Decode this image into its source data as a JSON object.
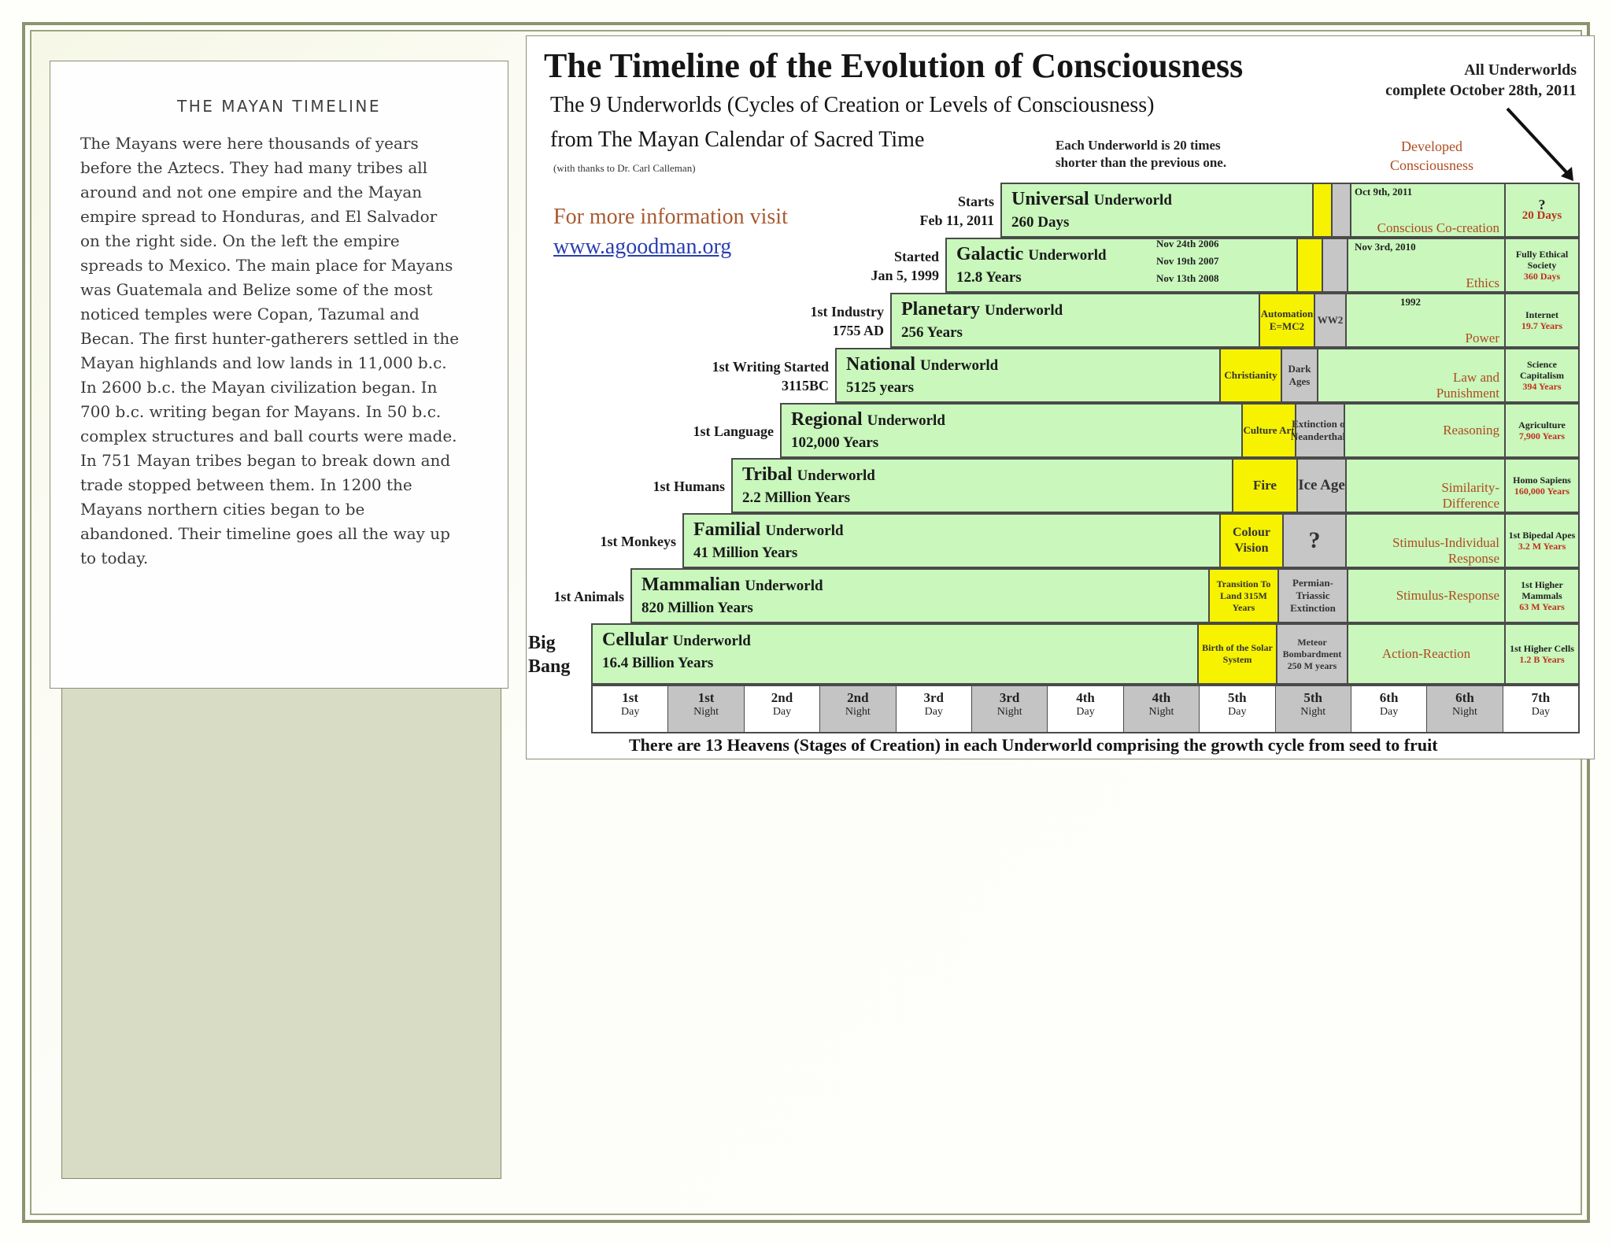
{
  "card": {
    "title": "THE MAYAN TIMELINE",
    "body": "The Mayans were here thousands of years\nbefore the Aztecs.  They had many tribes all\naround and not one empire and the Mayan\nempire spread to Honduras, and El Salvador\non the right side. On the left the empire\nspreads to Mexico. The main place for Mayans\nwas Guatemala and Belize some of the most\nnoticed temples were Copan, Tazumal and\nBecan. The first hunter-gatherers settled in the\nMayan highlands and low lands in 11,000 b.c.\nIn 2600 b.c. the Mayan civilization began. In\n700 b.c. writing began for Mayans. In 50 b.c.\ncomplex structures and ball courts were made.\nIn 751 Mayan tribes began to break down and\ntrade stopped between them. In 1200 the\nMayans northern cities began to be\nabandoned. Their timeline goes all the way up\nto today."
  },
  "poster": {
    "title": "The Timeline of the Evolution of Consciousness",
    "subtitle1": "The 9 Underworlds (Cycles of Creation or Levels of Consciousness)",
    "subtitle2": "from The Mayan Calendar of Sacred Time",
    "thanks": "(with thanks to Dr. Carl Calleman)",
    "note_line1": "Each Underworld is 20 times",
    "note_line2": "shorter than the previous one.",
    "all_underworlds_1": "All Underworlds",
    "all_underworlds_2": "complete October 28th, 2011",
    "developed_1": "Developed",
    "developed_2": "Consciousness",
    "more_info": "For more information visit",
    "url": "www.agoodman.org",
    "footer": "There are 13 Heavens (Stages of Creation) in each Underworld comprising the growth cycle from seed to fruit",
    "underworlds": [
      {
        "start1": "Starts",
        "start2": "Feb 11, 2011",
        "name": "Universal",
        "word": "Underworld",
        "duration": "260 Days",
        "dev": "Conscious Co-creation",
        "dev_marker": "Oct 9th, 2011",
        "last1": "?",
        "last2": "20 Days"
      },
      {
        "start1": "Started",
        "start2": "Jan 5, 1999",
        "name": "Galactic",
        "word": "Underworld",
        "duration": "12.8 Years",
        "dev": "Ethics",
        "dev_marker": "Nov 3rd, 2010",
        "m1": "Nov 24th 2006",
        "m2": "Nov 19th 2007",
        "m3": "Nov 13th 2008",
        "last1": "Fully Ethical Society",
        "last2": "360 Days"
      },
      {
        "start1": "1st Industry",
        "start2": "1755 AD",
        "name": "Planetary",
        "word": "Underworld",
        "duration": "256 Years",
        "yellow": "Automation E=MC2",
        "gray": "WW2",
        "dev": "Power",
        "dev_marker": "1992",
        "last1": "Internet",
        "last2": "19.7 Years"
      },
      {
        "start1": "1st Writing Started",
        "start2": "3115BC",
        "name": "National",
        "word": "Underworld",
        "duration": "5125 years",
        "yellow": "Christianity",
        "gray": "Dark Ages",
        "dev": "Law and Punishment",
        "last1": "Science Capitalism",
        "last2": "394 Years"
      },
      {
        "start1": "1st Language",
        "start2": "",
        "name": "Regional",
        "word": "Underworld",
        "duration": "102,000 Years",
        "yellow": "Culture Art",
        "gray": "Extinction of Neanderthals",
        "dev": "Reasoning",
        "last1": "Agriculture",
        "last2": "7,900 Years"
      },
      {
        "start1": "1st Humans",
        "start2": "",
        "name": "Tribal",
        "word": "Underworld",
        "duration": "2.2 Million Years",
        "yellow": "Fire",
        "gray": "Ice Age",
        "dev": "Similarity-Difference",
        "last1": "Homo Sapiens",
        "last2": "160,000 Years"
      },
      {
        "start1": "1st Monkeys",
        "start2": "",
        "name": "Familial",
        "word": "Underworld",
        "duration": "41 Million Years",
        "yellow": "Colour Vision",
        "gray": "?",
        "dev": "Stimulus-Individual Response",
        "last1": "1st Bipedal Apes",
        "last2": "3.2 M Years"
      },
      {
        "start1": "1st Animals",
        "start2": "",
        "name": "Mammalian",
        "word": "Underworld",
        "duration": "820 Million Years",
        "yellow": "Transition To Land 315M Years",
        "gray": "Permian-Triassic Extinction",
        "dev": "Stimulus-Response",
        "last1": "1st Higher Mammals",
        "last2": "63 M Years"
      },
      {
        "start1": "Big",
        "start2": "Bang",
        "name": "Cellular",
        "word": "Underworld",
        "duration": "16.4 Billion Years",
        "yellow": "Birth of the Solar System",
        "gray": "Meteor Bombardment 250 M years",
        "dev": "Action-Reaction",
        "last1": "1st Higher Cells",
        "last2": "1.2 B Years"
      }
    ],
    "heavens": [
      {
        "ord": "1st",
        "kind": "Day"
      },
      {
        "ord": "1st",
        "kind": "Night"
      },
      {
        "ord": "2nd",
        "kind": "Day"
      },
      {
        "ord": "2nd",
        "kind": "Night"
      },
      {
        "ord": "3rd",
        "kind": "Day"
      },
      {
        "ord": "3rd",
        "kind": "Night"
      },
      {
        "ord": "4th",
        "kind": "Day"
      },
      {
        "ord": "4th",
        "kind": "Night"
      },
      {
        "ord": "5th",
        "kind": "Day"
      },
      {
        "ord": "5th",
        "kind": "Night"
      },
      {
        "ord": "6th",
        "kind": "Day"
      },
      {
        "ord": "6th",
        "kind": "Night"
      },
      {
        "ord": "7th",
        "kind": "Day"
      }
    ]
  }
}
